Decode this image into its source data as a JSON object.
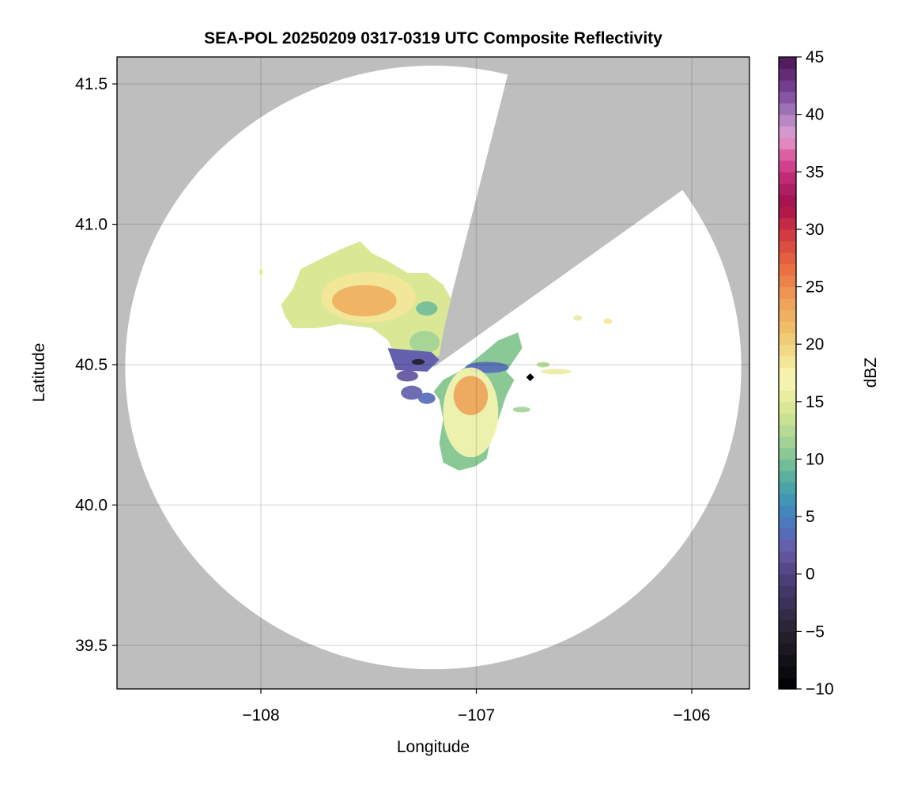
{
  "chart_data": {
    "type": "heatmap",
    "title": "SEA-POL 20250209 0317-0319 UTC Composite Reflectivity",
    "xlabel": "Longitude",
    "ylabel": "Latitude",
    "xlim": [
      -108.668,
      -105.732
    ],
    "ylim": [
      39.345,
      41.596
    ],
    "xticks": [
      -108,
      -107,
      -106
    ],
    "xtick_labels": [
      "−108",
      "−107",
      "−106"
    ],
    "yticks": [
      39.5,
      40.0,
      40.5,
      41.0,
      41.5
    ],
    "ytick_labels": [
      "39.5",
      "40.0",
      "40.5",
      "41.0",
      "41.5"
    ],
    "grid": true,
    "background_color": "#bebebe",
    "coverage": {
      "center": [
        -107.2,
        40.49
      ],
      "radius_lon_deg": 1.43,
      "radius_lat_deg": 1.075,
      "blocked_azimuth_deg": [
        14,
        54
      ],
      "color": "#ffffff"
    },
    "colorbar": {
      "label": "dBZ",
      "range": [
        -10,
        45
      ],
      "bin_width": 1,
      "ticks": [
        -10,
        -5,
        0,
        5,
        10,
        15,
        20,
        25,
        30,
        35,
        40,
        45
      ],
      "tick_labels": [
        "−10",
        "−5",
        "0",
        "5",
        "10",
        "15",
        "20",
        "25",
        "30",
        "35",
        "40",
        "45"
      ],
      "placement": "right",
      "colormap_stops": [
        [
          -10,
          "#000000"
        ],
        [
          -5,
          "#26222f"
        ],
        [
          0,
          "#4e4280"
        ],
        [
          2,
          "#6a5aa8"
        ],
        [
          4,
          "#5072be"
        ],
        [
          6,
          "#3f8fbd"
        ],
        [
          8,
          "#4fa8a0"
        ],
        [
          10,
          "#7ec496"
        ],
        [
          12,
          "#aed796"
        ],
        [
          14,
          "#d2e58f"
        ],
        [
          16,
          "#f0f0a8"
        ],
        [
          17,
          "#f8f8b8"
        ],
        [
          19,
          "#f2e08f"
        ],
        [
          21,
          "#f0c46c"
        ],
        [
          24,
          "#ee9e56"
        ],
        [
          27,
          "#e86840"
        ],
        [
          30,
          "#cc3344"
        ],
        [
          32,
          "#a8104a"
        ],
        [
          33,
          "#a01a58"
        ],
        [
          35,
          "#cc3080"
        ],
        [
          37,
          "#e070b0"
        ],
        [
          38,
          "#e4a0d0"
        ],
        [
          40,
          "#a880c0"
        ],
        [
          42,
          "#7a4598"
        ],
        [
          45,
          "#4a1550"
        ]
      ]
    },
    "echoes": [
      {
        "shape": "polygon",
        "dbz": 14,
        "points": [
          [
            -107.906,
            40.714
          ],
          [
            -107.851,
            40.77
          ],
          [
            -107.815,
            40.841
          ],
          [
            -107.741,
            40.869
          ],
          [
            -107.631,
            40.911
          ],
          [
            -107.539,
            40.939
          ],
          [
            -107.484,
            40.897
          ],
          [
            -107.411,
            40.869
          ],
          [
            -107.319,
            40.827
          ],
          [
            -107.228,
            40.827
          ],
          [
            -107.154,
            40.785
          ],
          [
            -107.117,
            40.734
          ],
          [
            -107.154,
            40.615
          ],
          [
            -107.172,
            40.531
          ],
          [
            -107.246,
            40.517
          ],
          [
            -107.374,
            40.531
          ],
          [
            -107.411,
            40.587
          ],
          [
            -107.484,
            40.63
          ],
          [
            -107.631,
            40.644
          ],
          [
            -107.741,
            40.63
          ],
          [
            -107.851,
            40.63
          ],
          [
            -107.888,
            40.672
          ]
        ]
      },
      {
        "shape": "ellipse",
        "dbz": 18,
        "lon": -107.5,
        "lat": 40.74,
        "rlon": 0.22,
        "rlat": 0.09
      },
      {
        "shape": "ellipse",
        "dbz": 22,
        "lon": -107.52,
        "lat": 40.728,
        "rlon": 0.15,
        "rlat": 0.056
      },
      {
        "shape": "ellipse",
        "dbz": 9,
        "lon": -107.23,
        "lat": 40.7,
        "rlon": 0.05,
        "rlat": 0.025
      },
      {
        "shape": "ellipse",
        "dbz": 11,
        "lon": -107.24,
        "lat": 40.58,
        "rlon": 0.07,
        "rlat": 0.04
      },
      {
        "shape": "polygon",
        "dbz": 2,
        "points": [
          [
            -107.411,
            40.559
          ],
          [
            -107.209,
            40.545
          ],
          [
            -107.172,
            40.517
          ],
          [
            -107.228,
            40.475
          ],
          [
            -107.374,
            40.481
          ]
        ]
      },
      {
        "shape": "ellipse",
        "dbz": -6,
        "lon": -107.27,
        "lat": 40.51,
        "rlon": 0.03,
        "rlat": 0.01
      },
      {
        "shape": "ellipse",
        "dbz": 1,
        "lon": -107.32,
        "lat": 40.46,
        "rlon": 0.05,
        "rlat": 0.02
      },
      {
        "shape": "ellipse",
        "dbz": 2,
        "lon": -107.3,
        "lat": 40.4,
        "rlon": 0.05,
        "rlat": 0.025
      },
      {
        "shape": "ellipse",
        "dbz": 3,
        "lon": -107.23,
        "lat": 40.38,
        "rlon": 0.04,
        "rlat": 0.02
      },
      {
        "shape": "polygon",
        "dbz": 10,
        "points": [
          [
            -107.154,
            40.446
          ],
          [
            -107.081,
            40.475
          ],
          [
            -107.007,
            40.517
          ],
          [
            -106.897,
            40.587
          ],
          [
            -106.806,
            40.615
          ],
          [
            -106.787,
            40.559
          ],
          [
            -106.824,
            40.517
          ],
          [
            -106.861,
            40.475
          ],
          [
            -106.824,
            40.446
          ],
          [
            -106.861,
            40.39
          ],
          [
            -106.897,
            40.306
          ],
          [
            -106.934,
            40.235
          ],
          [
            -106.952,
            40.165
          ],
          [
            -107.007,
            40.137
          ],
          [
            -107.081,
            40.123
          ],
          [
            -107.154,
            40.151
          ],
          [
            -107.172,
            40.221
          ],
          [
            -107.154,
            40.306
          ],
          [
            -107.172,
            40.376
          ],
          [
            -107.198,
            40.404
          ]
        ]
      },
      {
        "shape": "ellipse",
        "dbz": 3,
        "lon": -106.95,
        "lat": 40.49,
        "rlon": 0.1,
        "rlat": 0.02
      },
      {
        "shape": "ellipse",
        "dbz": 16,
        "lon": -107.026,
        "lat": 40.33,
        "rlon": 0.128,
        "rlat": 0.16
      },
      {
        "shape": "ellipse",
        "dbz": 23,
        "lon": -107.026,
        "lat": 40.39,
        "rlon": 0.08,
        "rlat": 0.07
      },
      {
        "shape": "ellipse",
        "dbz": 15,
        "lon": -106.63,
        "lat": 40.475,
        "rlon": 0.07,
        "rlat": 0.01
      },
      {
        "shape": "ellipse",
        "dbz": 12,
        "lon": -106.69,
        "lat": 40.5,
        "rlon": 0.03,
        "rlat": 0.01
      },
      {
        "shape": "ellipse",
        "dbz": 11,
        "lon": -106.79,
        "lat": 40.34,
        "rlon": 0.04,
        "rlat": 0.01
      },
      {
        "shape": "ellipse",
        "dbz": 15,
        "lon": -106.53,
        "lat": 40.666,
        "rlon": 0.02,
        "rlat": 0.01
      },
      {
        "shape": "ellipse",
        "dbz": 18,
        "lon": -106.39,
        "lat": 40.655,
        "rlon": 0.02,
        "rlat": 0.01
      },
      {
        "shape": "ellipse",
        "dbz": 16,
        "lon": -108.0,
        "lat": 40.83,
        "rlon": 0.012,
        "rlat": 0.01
      }
    ],
    "marker": {
      "lon": -106.75,
      "lat": 40.455,
      "shape": "diamond",
      "color": "#000000"
    }
  }
}
